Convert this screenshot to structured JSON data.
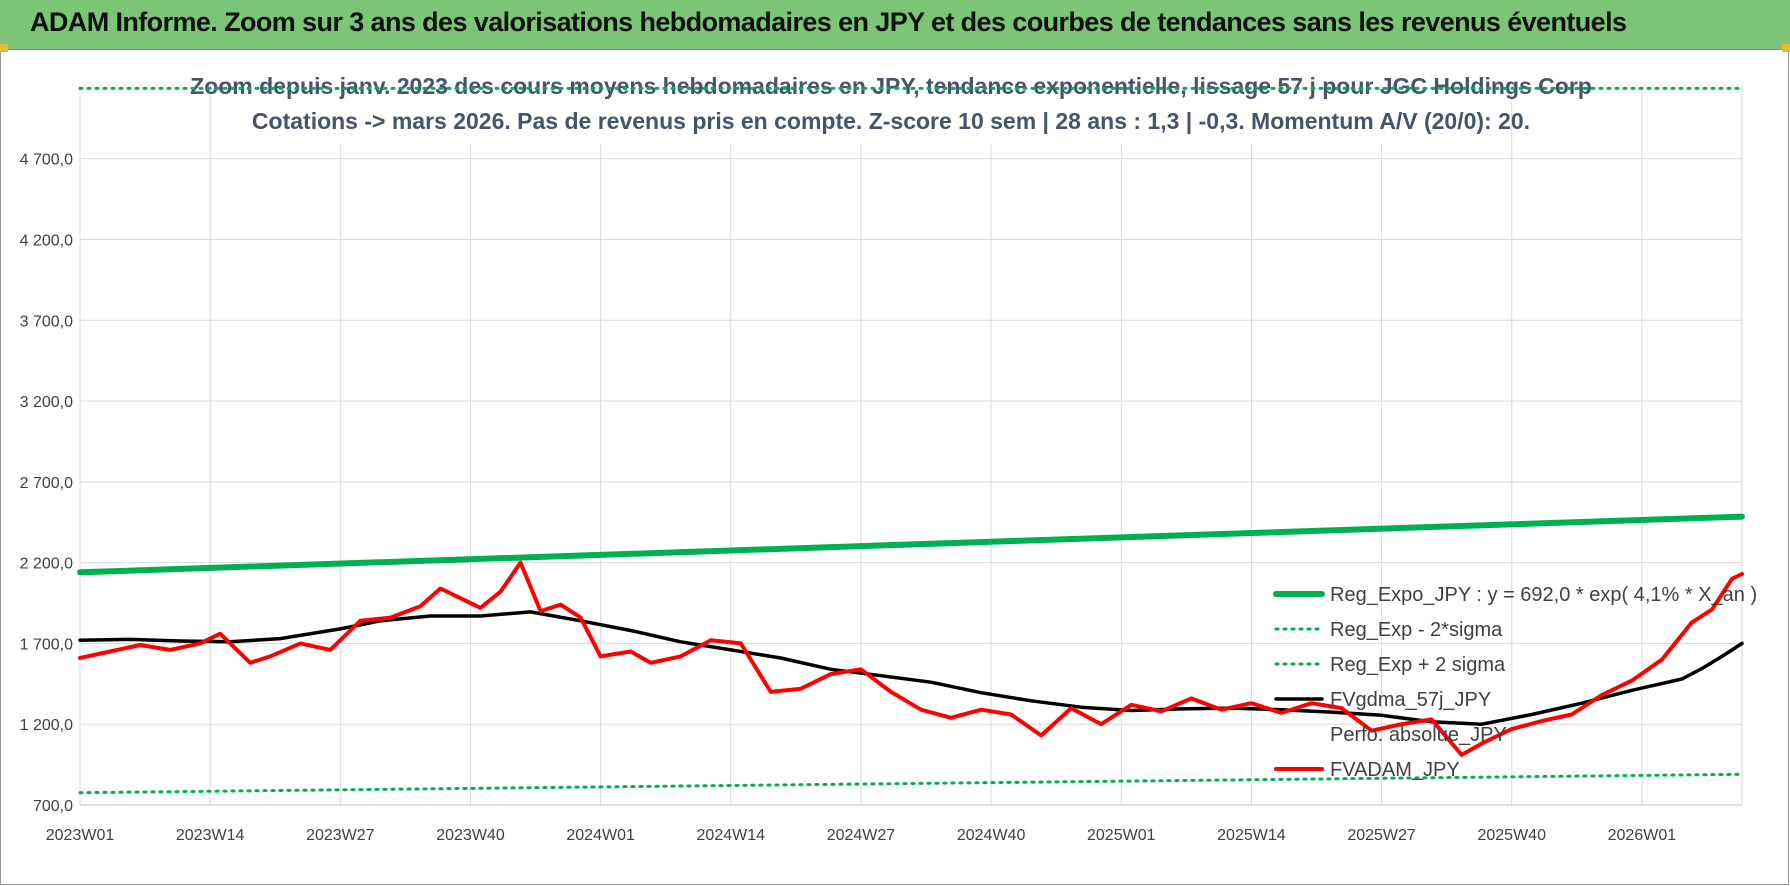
{
  "banner": {
    "title": "ADAM Informe. Zoom sur 3 ans des valorisations hebdomadaires en JPY et des courbes de tendances sans les revenus éventuels"
  },
  "colors": {
    "banner_bg": "#7cc576",
    "reg_expo": "#00b050",
    "fvgdma": "#000000",
    "fvadam": "#ff0000",
    "grid": "#d9d9d9",
    "title_text": "#44546a"
  },
  "chart_data": {
    "type": "line",
    "title_line1": "Zoom depuis janv. 2023 des cours moyens hebdomadaires en JPY, tendance exponentielle, lissage 57 j pour JGC Holdings Corp",
    "title_line2": "Cotations -> mars 2026. Pas de revenus pris en compte. Z-score 10 sem | 28 ans : 1,3 | -0,3. Momentum A/V (20/0): 20.",
    "x_tick_labels": [
      "2023W01",
      "2023W14",
      "2023W27",
      "2023W40",
      "2024W01",
      "2024W14",
      "2024W27",
      "2024W40",
      "2025W01",
      "2025W14",
      "2025W27",
      "2025W40",
      "2026W01"
    ],
    "y_tick_labels": [
      "700,0",
      "1 200,0",
      "1 700,0",
      "2 200,0",
      "2 700,0",
      "3 200,0",
      "3 700,0",
      "4 200,0",
      "4 700,0"
    ],
    "y_ticks": [
      700,
      1200,
      1700,
      2200,
      2700,
      3200,
      3700,
      4200,
      4700
    ],
    "ylim": [
      700,
      5150
    ],
    "x_range_weeks": [
      0,
      166
    ],
    "legend_position": "right",
    "legend": [
      {
        "key": "reg_expo",
        "label": "Reg_Expo_JPY : y = 692,0 * exp( 4,1% * X_an )",
        "style": "thick"
      },
      {
        "key": "reg_minus",
        "label": "Reg_Exp - 2*sigma",
        "style": "dotted"
      },
      {
        "key": "reg_plus",
        "label": "Reg_Exp + 2 sigma",
        "style": "dotted"
      },
      {
        "key": "fvgdma",
        "label": "FVgdma_57j_JPY",
        "style": "solid"
      },
      {
        "key": "perfo",
        "label": "Perfo. absolue_JPY",
        "style": "none"
      },
      {
        "key": "fvadam",
        "label": "FVADAM_JPY",
        "style": "solid"
      }
    ],
    "series": [
      {
        "key": "reg_expo",
        "name": "Reg_Expo_JPY",
        "x": [
          0,
          166
        ],
        "values": [
          2140,
          2485
        ]
      },
      {
        "key": "reg_minus",
        "name": "Reg_Exp - 2*sigma",
        "x": [
          0,
          166
        ],
        "values": [
          776,
          890
        ]
      },
      {
        "key": "reg_plus",
        "name": "Reg_Exp + 2 sigma",
        "x": [
          0,
          166
        ],
        "values": [
          5135,
          5135
        ]
      },
      {
        "key": "fvgdma",
        "name": "FVgdma_57j_JPY",
        "x": [
          0,
          5,
          10,
          15,
          20,
          26,
          30,
          35,
          40,
          45,
          50,
          55,
          60,
          65,
          70,
          75,
          80,
          85,
          90,
          95,
          100,
          105,
          110,
          115,
          120,
          125,
          130,
          135,
          140,
          145,
          150,
          155,
          160,
          162,
          164,
          166
        ],
        "values": [
          1720,
          1725,
          1715,
          1710,
          1730,
          1790,
          1840,
          1870,
          1870,
          1895,
          1840,
          1780,
          1710,
          1660,
          1610,
          1540,
          1500,
          1460,
          1395,
          1345,
          1305,
          1285,
          1295,
          1300,
          1290,
          1275,
          1255,
          1215,
          1200,
          1260,
          1330,
          1410,
          1480,
          1545,
          1620,
          1700
        ]
      },
      {
        "key": "fvadam",
        "name": "FVADAM_JPY",
        "x": [
          0,
          3,
          6,
          9,
          12,
          14,
          17,
          19,
          22,
          25,
          28,
          31,
          34,
          36,
          38,
          40,
          42,
          44,
          46,
          48,
          50,
          52,
          55,
          57,
          60,
          63,
          66,
          69,
          72,
          75,
          78,
          81,
          84,
          87,
          90,
          93,
          96,
          99,
          102,
          105,
          108,
          111,
          114,
          117,
          120,
          123,
          126,
          129,
          132,
          135,
          138,
          140,
          143,
          146,
          149,
          152,
          155,
          158,
          161,
          163,
          165,
          166
        ],
        "values": [
          1610,
          1650,
          1690,
          1660,
          1700,
          1760,
          1580,
          1620,
          1700,
          1660,
          1840,
          1860,
          1930,
          2040,
          1980,
          1920,
          2020,
          2200,
          1900,
          1940,
          1860,
          1620,
          1650,
          1580,
          1620,
          1720,
          1700,
          1400,
          1420,
          1510,
          1540,
          1400,
          1290,
          1240,
          1290,
          1260,
          1130,
          1300,
          1200,
          1320,
          1280,
          1360,
          1290,
          1330,
          1270,
          1330,
          1300,
          1160,
          1200,
          1230,
          1010,
          1080,
          1170,
          1220,
          1260,
          1380,
          1470,
          1600,
          1830,
          1910,
          2100,
          2130
        ]
      }
    ]
  }
}
